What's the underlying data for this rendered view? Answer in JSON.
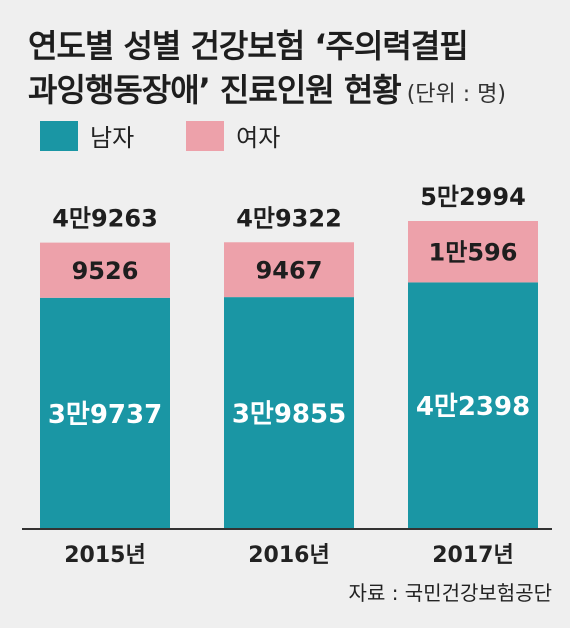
{
  "title_line1": "연도별 성별 건강보험 ‘주의력결핍",
  "title_line2": "과잉행동장애’ 진료인원 현황",
  "unit": "(단위 : 명)",
  "legend": {
    "male": "남자",
    "female": "여자"
  },
  "source": "자료 : 국민건강보험공단",
  "colors": {
    "male": "#1a96a4",
    "female": "#eda1aa",
    "axis": "#333333"
  },
  "chart_data": {
    "type": "bar",
    "stacked": true,
    "categories": [
      "2015년",
      "2016년",
      "2017년"
    ],
    "series": [
      {
        "name": "남자",
        "values": [
          39737,
          39855,
          42398
        ],
        "labels": [
          "3만9737",
          "3만9855",
          "4만2398"
        ]
      },
      {
        "name": "여자",
        "values": [
          9526,
          9467,
          10596
        ],
        "labels": [
          "9526",
          "9467",
          "1만596"
        ]
      }
    ],
    "totals": [
      49263,
      49322,
      52994
    ],
    "total_labels": [
      "4만9263",
      "4만9322",
      "5만2994"
    ]
  }
}
